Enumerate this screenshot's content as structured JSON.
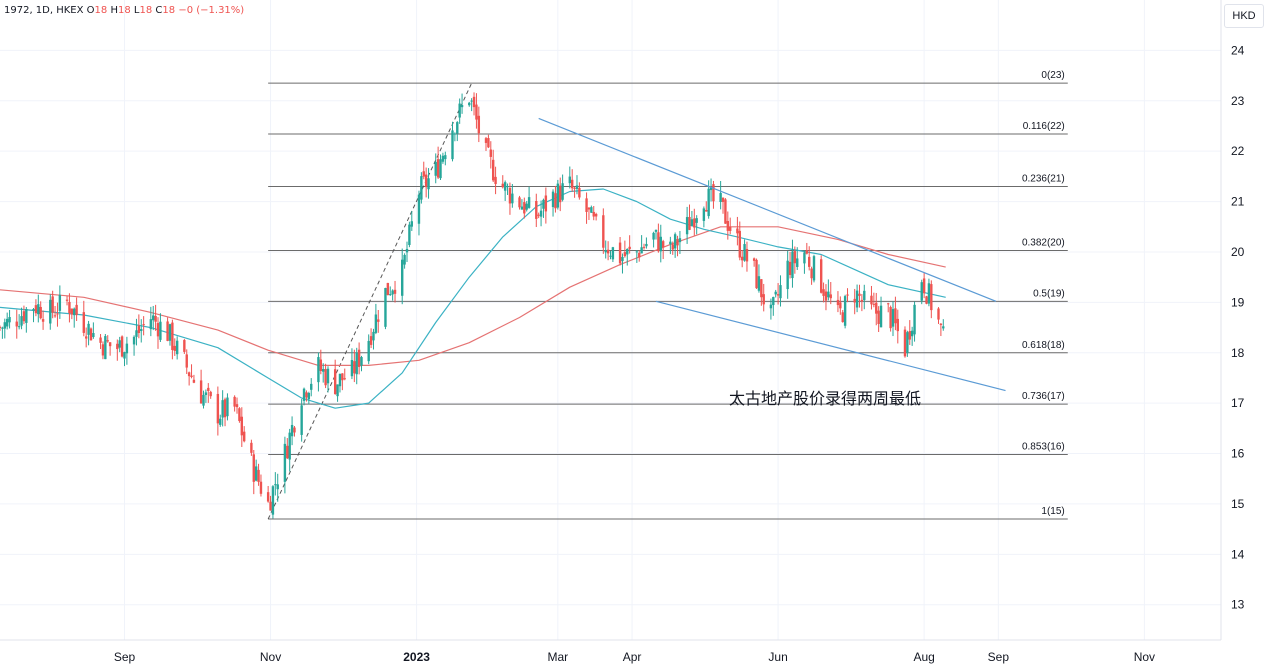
{
  "header": {
    "symbol": "1972, 1D, HKEX",
    "open_label": "O",
    "open": "18",
    "high_label": "H",
    "high": "18",
    "low_label": "L",
    "low": "18",
    "close_label": "C",
    "close": "18",
    "change": "−0 (−1.31%)"
  },
  "currency_button": "HKD",
  "annotation": "太古地产股价录得两周最低",
  "colors": {
    "up": "#26a69a",
    "down": "#ef5350",
    "ma_fast": "#3bb2c4",
    "ma_slow": "#e57373",
    "channel": "#5b9bd5",
    "fib_line": "#6b6b6b",
    "grid": "#f0f3fa",
    "diagonal": "#555555"
  },
  "chart_data": {
    "type": "candlestick",
    "ylim": [
      12.3,
      25.0
    ],
    "y_ticks": [
      "24",
      "23",
      "22",
      "21",
      "20",
      "19",
      "18",
      "17",
      "16",
      "15",
      "14",
      "13"
    ],
    "x_ticks": [
      {
        "label": "Sep",
        "date": "2022-09-01",
        "bold": false
      },
      {
        "label": "Nov",
        "date": "2022-11-01",
        "bold": false
      },
      {
        "label": "2023",
        "date": "2023-01-01",
        "bold": true
      },
      {
        "label": "Mar",
        "date": "2023-03-01",
        "bold": false
      },
      {
        "label": "Apr",
        "date": "2023-04-01",
        "bold": false
      },
      {
        "label": "Jun",
        "date": "2023-06-01",
        "bold": false
      },
      {
        "label": "Aug",
        "date": "2023-08-01",
        "bold": false
      },
      {
        "label": "Sep",
        "date": "2023-09-01",
        "bold": false
      },
      {
        "label": "Nov",
        "date": "2023-11-01",
        "bold": false
      }
    ],
    "x_range": [
      "2022-07-11",
      "2023-12-03"
    ],
    "fib_levels": [
      {
        "label": "0(23)",
        "value": 23.35
      },
      {
        "label": "0.116(22)",
        "value": 22.34
      },
      {
        "label": "0.236(21)",
        "value": 21.3
      },
      {
        "label": "0.382(20)",
        "value": 20.03
      },
      {
        "label": "0.5(19)",
        "value": 19.02
      },
      {
        "label": "0.618(18)",
        "value": 18.0
      },
      {
        "label": "0.736(17)",
        "value": 16.98
      },
      {
        "label": "0.853(16)",
        "value": 15.98
      },
      {
        "label": "1(15)",
        "value": 14.7
      }
    ],
    "fib_start_date": "2022-10-31",
    "fib_end_date": "2023-09-30",
    "fib_swing": {
      "from": [
        "2022-10-31",
        14.7
      ],
      "to": [
        "2023-01-24",
        23.35
      ]
    },
    "channel_upper": {
      "from": [
        "2023-02-21",
        22.65
      ],
      "to": [
        "2023-08-31",
        19.02
      ]
    },
    "channel_lower": {
      "from": [
        "2023-04-11",
        19.02
      ],
      "to": [
        "2023-09-04",
        17.25
      ]
    },
    "closes": [
      [
        "2022-07-11",
        18.5
      ],
      [
        "2022-07-18",
        18.7
      ],
      [
        "2022-07-25",
        18.95
      ],
      [
        "2022-08-01",
        18.8
      ],
      [
        "2022-08-08",
        19.0
      ],
      [
        "2022-08-15",
        18.6
      ],
      [
        "2022-08-22",
        18.2
      ],
      [
        "2022-08-29",
        18.1
      ],
      [
        "2022-09-05",
        18.3
      ],
      [
        "2022-09-12",
        18.7
      ],
      [
        "2022-09-19",
        18.4
      ],
      [
        "2022-09-26",
        17.8
      ],
      [
        "2022-10-03",
        17.2
      ],
      [
        "2022-10-10",
        16.8
      ],
      [
        "2022-10-17",
        16.9
      ],
      [
        "2022-10-24",
        15.8
      ],
      [
        "2022-10-31",
        15.0
      ],
      [
        "2022-11-07",
        16.0
      ],
      [
        "2022-11-14",
        17.2
      ],
      [
        "2022-11-21",
        17.7
      ],
      [
        "2022-11-28",
        17.4
      ],
      [
        "2022-12-05",
        17.6
      ],
      [
        "2022-12-12",
        18.3
      ],
      [
        "2022-12-19",
        19.2
      ],
      [
        "2022-12-26",
        19.6
      ],
      [
        "2023-01-02",
        21.2
      ],
      [
        "2023-01-09",
        21.6
      ],
      [
        "2023-01-16",
        22.5
      ],
      [
        "2023-01-23",
        23.1
      ],
      [
        "2023-01-30",
        21.9
      ],
      [
        "2023-02-06",
        21.3
      ],
      [
        "2023-02-13",
        21.0
      ],
      [
        "2023-02-20",
        20.7
      ],
      [
        "2023-02-27",
        21.1
      ],
      [
        "2023-03-06",
        21.3
      ],
      [
        "2023-03-13",
        20.8
      ],
      [
        "2023-03-20",
        20.2
      ],
      [
        "2023-03-27",
        19.9
      ],
      [
        "2023-04-03",
        20.0
      ],
      [
        "2023-04-10",
        20.3
      ],
      [
        "2023-04-17",
        20.0
      ],
      [
        "2023-04-24",
        20.5
      ],
      [
        "2023-05-01",
        21.1
      ],
      [
        "2023-05-08",
        20.9
      ],
      [
        "2023-05-15",
        20.2
      ],
      [
        "2023-05-22",
        19.6
      ],
      [
        "2023-05-29",
        18.7
      ],
      [
        "2023-06-05",
        19.7
      ],
      [
        "2023-06-12",
        20.0
      ],
      [
        "2023-06-19",
        19.4
      ],
      [
        "2023-06-26",
        18.7
      ],
      [
        "2023-07-03",
        19.2
      ],
      [
        "2023-07-10",
        18.8
      ],
      [
        "2023-07-17",
        18.8
      ],
      [
        "2023-07-24",
        18.1
      ],
      [
        "2023-07-31",
        19.5
      ],
      [
        "2023-08-07",
        18.6
      ],
      [
        "2023-08-10",
        18.1
      ]
    ],
    "ma_fast": [
      [
        "2022-07-11",
        18.9
      ],
      [
        "2022-08-15",
        18.75
      ],
      [
        "2022-09-12",
        18.5
      ],
      [
        "2022-10-10",
        18.1
      ],
      [
        "2022-10-31",
        17.5
      ],
      [
        "2022-11-14",
        17.1
      ],
      [
        "2022-11-28",
        16.9
      ],
      [
        "2022-12-12",
        17.0
      ],
      [
        "2022-12-26",
        17.6
      ],
      [
        "2023-01-09",
        18.6
      ],
      [
        "2023-01-23",
        19.5
      ],
      [
        "2023-02-06",
        20.3
      ],
      [
        "2023-02-20",
        20.9
      ],
      [
        "2023-03-06",
        21.2
      ],
      [
        "2023-03-20",
        21.25
      ],
      [
        "2023-04-03",
        21.0
      ],
      [
        "2023-04-17",
        20.65
      ],
      [
        "2023-05-01",
        20.45
      ],
      [
        "2023-05-15",
        20.3
      ],
      [
        "2023-06-01",
        20.1
      ],
      [
        "2023-06-19",
        19.95
      ],
      [
        "2023-07-03",
        19.65
      ],
      [
        "2023-07-17",
        19.35
      ],
      [
        "2023-08-10",
        19.1
      ]
    ],
    "ma_slow": [
      [
        "2022-07-11",
        19.25
      ],
      [
        "2022-08-15",
        19.1
      ],
      [
        "2022-09-12",
        18.8
      ],
      [
        "2022-10-10",
        18.45
      ],
      [
        "2022-10-31",
        18.05
      ],
      [
        "2022-11-21",
        17.75
      ],
      [
        "2022-12-12",
        17.75
      ],
      [
        "2023-01-02",
        17.85
      ],
      [
        "2023-01-23",
        18.2
      ],
      [
        "2023-02-13",
        18.7
      ],
      [
        "2023-03-06",
        19.3
      ],
      [
        "2023-03-27",
        19.75
      ],
      [
        "2023-04-17",
        20.15
      ],
      [
        "2023-05-08",
        20.5
      ],
      [
        "2023-06-01",
        20.5
      ],
      [
        "2023-06-26",
        20.25
      ],
      [
        "2023-07-17",
        19.95
      ],
      [
        "2023-08-10",
        19.7
      ]
    ]
  }
}
